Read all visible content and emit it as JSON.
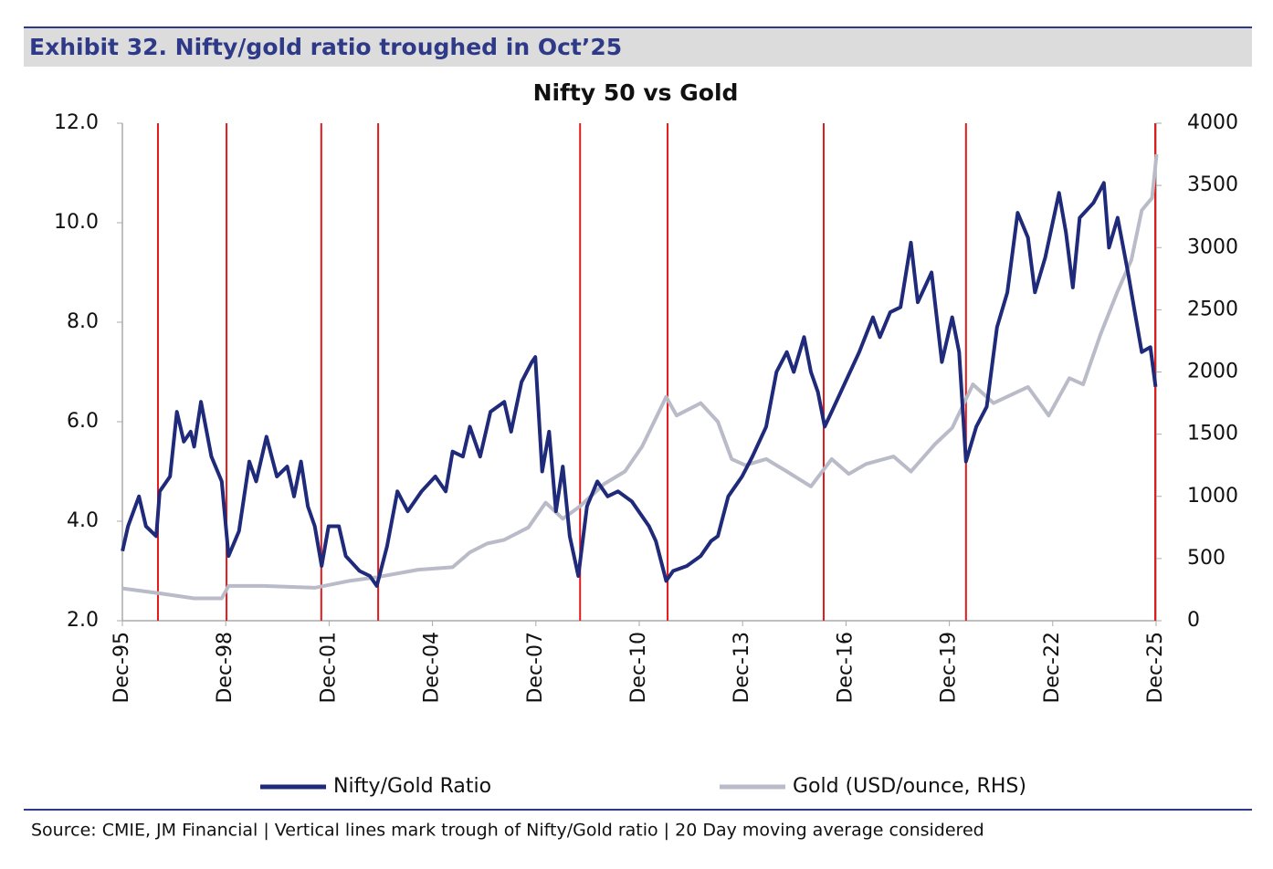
{
  "header": {
    "title": "Exhibit 32. Nifty/gold ratio troughed in Oct’25"
  },
  "source": "Source: CMIE, JM Financial | Vertical lines mark trough of Nifty/Gold ratio | 20 Day moving average considered",
  "chart_data": {
    "type": "line",
    "title": "Nifty 50 vs Gold",
    "xlim": [
      1995.917,
      2025.917
    ],
    "xticks": [
      {
        "value": 1995.917,
        "label": "Dec-95"
      },
      {
        "value": 1998.917,
        "label": "Dec-98"
      },
      {
        "value": 2001.917,
        "label": "Dec-01"
      },
      {
        "value": 2004.917,
        "label": "Dec-04"
      },
      {
        "value": 2007.917,
        "label": "Dec-07"
      },
      {
        "value": 2010.917,
        "label": "Dec-10"
      },
      {
        "value": 2013.917,
        "label": "Dec-13"
      },
      {
        "value": 2016.917,
        "label": "Dec-16"
      },
      {
        "value": 2019.917,
        "label": "Dec-19"
      },
      {
        "value": 2022.917,
        "label": "Dec-22"
      },
      {
        "value": 2025.917,
        "label": "Dec-25"
      }
    ],
    "ylim": [
      2,
      12
    ],
    "yticks": [
      {
        "value": 2,
        "label": "2.0"
      },
      {
        "value": 4,
        "label": "4.0"
      },
      {
        "value": 6,
        "label": "6.0"
      },
      {
        "value": 8,
        "label": "8.0"
      },
      {
        "value": 10,
        "label": "10.0"
      },
      {
        "value": 12,
        "label": "12.0"
      }
    ],
    "y2lim": [
      0,
      4000
    ],
    "y2ticks": [
      0,
      500,
      1000,
      1500,
      2000,
      2500,
      3000,
      3500,
      4000
    ],
    "trough_markers": {
      "color": "#e31a1c",
      "x": [
        1996.95,
        1998.94,
        2001.69,
        2003.34,
        2009.2,
        2011.74,
        2016.27,
        2020.4,
        2025.89
      ]
    },
    "series": [
      {
        "name": "Nifty/Gold Ratio",
        "color": "#1f2a7a",
        "x": [
          1995.92,
          1996.08,
          1996.4,
          1996.6,
          1996.9,
          1997.0,
          1997.3,
          1997.5,
          1997.7,
          1997.9,
          1998.0,
          1998.2,
          1998.5,
          1998.8,
          1999.0,
          1999.3,
          1999.6,
          1999.8,
          2000.1,
          2000.4,
          2000.7,
          2000.9,
          2001.1,
          2001.3,
          2001.5,
          2001.7,
          2001.9,
          2002.2,
          2002.4,
          2002.8,
          2003.1,
          2003.3,
          2003.6,
          2003.9,
          2004.2,
          2004.6,
          2005.0,
          2005.3,
          2005.5,
          2005.8,
          2006.0,
          2006.3,
          2006.6,
          2007.0,
          2007.2,
          2007.5,
          2007.8,
          2007.9,
          2008.1,
          2008.3,
          2008.5,
          2008.7,
          2008.9,
          2009.15,
          2009.4,
          2009.7,
          2010.0,
          2010.3,
          2010.7,
          2011.2,
          2011.4,
          2011.7,
          2011.9,
          2012.3,
          2012.7,
          2013.0,
          2013.2,
          2013.5,
          2013.9,
          2014.2,
          2014.6,
          2014.9,
          2015.2,
          2015.4,
          2015.7,
          2015.9,
          2016.1,
          2016.3,
          2016.5,
          2016.9,
          2017.3,
          2017.7,
          2017.9,
          2018.2,
          2018.5,
          2018.8,
          2019.0,
          2019.4,
          2019.7,
          2020.0,
          2020.2,
          2020.4,
          2020.7,
          2021.0,
          2021.3,
          2021.6,
          2021.9,
          2022.2,
          2022.4,
          2022.7,
          2023.1,
          2023.3,
          2023.5,
          2023.7,
          2024.1,
          2024.4,
          2024.55,
          2024.8,
          2025.1,
          2025.3,
          2025.5,
          2025.75,
          2025.9
        ],
        "values": [
          3.4,
          3.9,
          4.5,
          3.9,
          3.7,
          4.6,
          4.9,
          6.2,
          5.6,
          5.8,
          5.5,
          6.4,
          5.3,
          4.8,
          3.3,
          3.8,
          5.2,
          4.8,
          5.7,
          4.9,
          5.1,
          4.5,
          5.2,
          4.3,
          3.9,
          3.1,
          3.9,
          3.9,
          3.3,
          3.0,
          2.9,
          2.7,
          3.5,
          4.6,
          4.2,
          4.6,
          4.9,
          4.6,
          5.4,
          5.3,
          5.9,
          5.3,
          6.2,
          6.4,
          5.8,
          6.8,
          7.2,
          7.3,
          5.0,
          5.8,
          4.2,
          5.1,
          3.7,
          2.9,
          4.3,
          4.8,
          4.5,
          4.6,
          4.4,
          3.9,
          3.6,
          2.8,
          3.0,
          3.1,
          3.3,
          3.6,
          3.7,
          4.5,
          4.9,
          5.3,
          5.9,
          7.0,
          7.4,
          7.0,
          7.7,
          7.0,
          6.6,
          5.9,
          6.2,
          6.8,
          7.4,
          8.1,
          7.7,
          8.2,
          8.3,
          9.6,
          8.4,
          9.0,
          7.2,
          8.1,
          7.4,
          5.2,
          5.9,
          6.3,
          7.9,
          8.6,
          10.2,
          9.7,
          8.6,
          9.3,
          10.6,
          9.8,
          8.7,
          10.1,
          10.4,
          10.8,
          9.5,
          10.1,
          9.0,
          8.2,
          7.4,
          7.5,
          6.7
        ]
      },
      {
        "name": "Gold (USD/ounce, RHS)",
        "color": "#b9bbc8",
        "axis": "y2",
        "x": [
          1995.92,
          1997.0,
          1998.0,
          1998.8,
          1999.0,
          2000.0,
          2001.5,
          2002.5,
          2003.3,
          2004.5,
          2005.5,
          2006.0,
          2006.5,
          2007.0,
          2007.7,
          2008.2,
          2008.7,
          2009.2,
          2009.9,
          2010.5,
          2011.0,
          2011.7,
          2012.0,
          2012.7,
          2013.2,
          2013.6,
          2014.0,
          2014.6,
          2015.2,
          2015.9,
          2016.5,
          2017.0,
          2017.5,
          2018.3,
          2018.8,
          2019.5,
          2020.0,
          2020.6,
          2021.2,
          2022.2,
          2022.8,
          2023.4,
          2023.8,
          2024.3,
          2024.8,
          2025.2,
          2025.5,
          2025.8,
          2025.93
        ],
        "values": [
          260,
          220,
          180,
          180,
          280,
          280,
          265,
          320,
          350,
          410,
          430,
          550,
          620,
          650,
          750,
          950,
          820,
          920,
          1100,
          1200,
          1400,
          1800,
          1650,
          1750,
          1600,
          1300,
          1250,
          1300,
          1200,
          1080,
          1300,
          1180,
          1260,
          1320,
          1200,
          1420,
          1550,
          1900,
          1750,
          1880,
          1650,
          1950,
          1900,
          2300,
          2650,
          2900,
          3300,
          3400,
          3750
        ]
      }
    ]
  }
}
